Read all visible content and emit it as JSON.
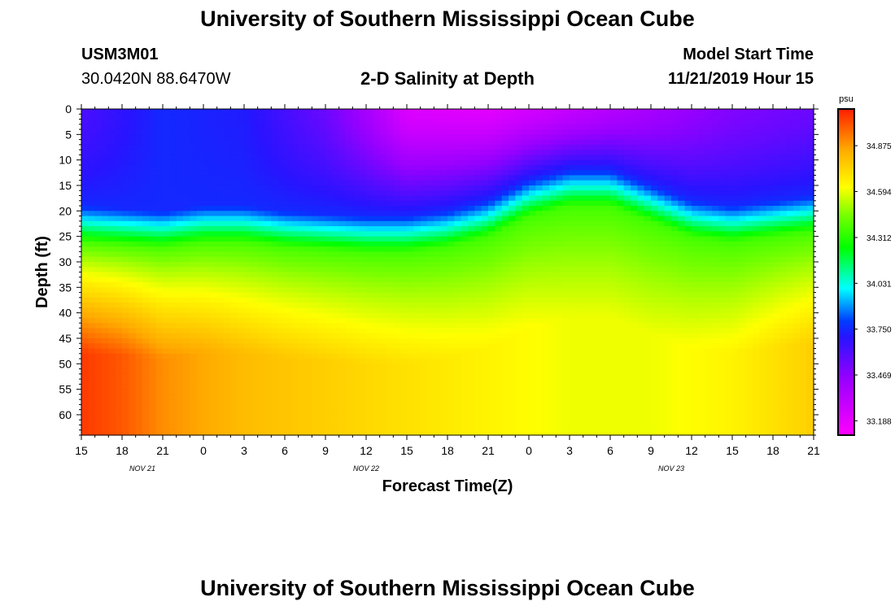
{
  "header": {
    "title_top": "University of Southern Mississippi Ocean Cube",
    "title_bottom": "University of Southern Mississippi Ocean Cube",
    "station_id": "USM3M01",
    "station_position": "30.0420N 88.6470W",
    "plot_title": "2-D Salinity at Depth",
    "model_start_label": "Model Start Time",
    "model_start_value": "11/21/2019 Hour 15"
  },
  "chart_data": {
    "type": "heatmap",
    "title": "2-D Salinity at Depth",
    "xlabel": "Forecast Time(Z)",
    "ylabel": "Depth (ft)",
    "x_ticks": [
      "15",
      "18",
      "21",
      "0",
      "3",
      "6",
      "9",
      "12",
      "15",
      "18",
      "21",
      "0",
      "3",
      "6",
      "9",
      "12",
      "15",
      "18",
      "21"
    ],
    "x_tick_hours": [
      0,
      3,
      6,
      9,
      12,
      15,
      18,
      21,
      24,
      27,
      30,
      33,
      36,
      39,
      42,
      45,
      48,
      51,
      54
    ],
    "date_labels": [
      {
        "label": "NOV 21",
        "hour": 4.5
      },
      {
        "label": "NOV 22",
        "hour": 21
      },
      {
        "label": "NOV 23",
        "hour": 43.5
      }
    ],
    "x_range_hours": [
      0,
      54
    ],
    "y_ticks": [
      0,
      5,
      10,
      15,
      20,
      25,
      30,
      35,
      40,
      45,
      50,
      55,
      60
    ],
    "ylim": [
      0,
      64
    ],
    "colorbar": {
      "unit": "psu",
      "ticks": [
        "34.875",
        "34.594",
        "34.312",
        "34.031",
        "33.750",
        "33.469",
        "33.188"
      ],
      "tick_values": [
        34.875,
        34.594,
        34.312,
        34.031,
        33.75,
        33.469,
        33.188
      ],
      "range": [
        33.1,
        35.1
      ]
    },
    "fields": {
      "halocline_depth_ft_by_hour": [
        [
          0,
          22
        ],
        [
          3,
          22.5
        ],
        [
          6,
          23
        ],
        [
          9,
          22
        ],
        [
          12,
          22
        ],
        [
          15,
          23
        ],
        [
          18,
          23.5
        ],
        [
          21,
          24
        ],
        [
          24,
          24
        ],
        [
          27,
          23
        ],
        [
          30,
          21
        ],
        [
          33,
          17
        ],
        [
          36,
          15
        ],
        [
          39,
          15
        ],
        [
          42,
          18
        ],
        [
          45,
          21
        ],
        [
          48,
          22
        ],
        [
          51,
          21
        ],
        [
          54,
          20
        ]
      ],
      "surface_salinity_psu_by_hour": [
        [
          0,
          33.62
        ],
        [
          6,
          33.75
        ],
        [
          12,
          33.72
        ],
        [
          18,
          33.55
        ],
        [
          21,
          33.4
        ],
        [
          24,
          33.22
        ],
        [
          30,
          33.2
        ],
        [
          36,
          33.3
        ],
        [
          42,
          33.4
        ],
        [
          48,
          33.5
        ],
        [
          54,
          33.55
        ]
      ],
      "deep_salinity_psu_by_hour": [
        [
          0,
          35.05
        ],
        [
          3,
          35.0
        ],
        [
          6,
          34.9
        ],
        [
          12,
          34.8
        ],
        [
          18,
          34.75
        ],
        [
          24,
          34.7
        ],
        [
          30,
          34.65
        ],
        [
          36,
          34.6
        ],
        [
          42,
          34.6
        ],
        [
          48,
          34.65
        ],
        [
          51,
          34.7
        ],
        [
          54,
          34.75
        ]
      ],
      "mid_core_salinity_psu": 33.75
    }
  }
}
